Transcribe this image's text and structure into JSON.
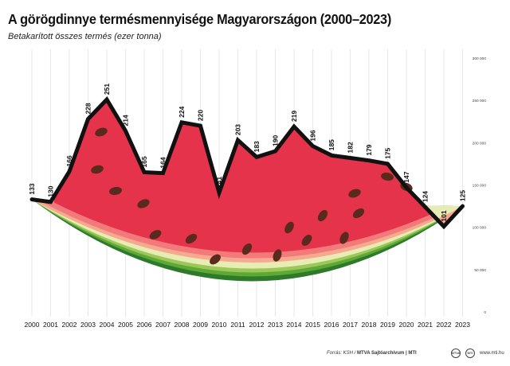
{
  "chart_data": {
    "type": "line",
    "title": "A görögdinnye termésmennyisége Magyarországon (2000–2023)",
    "subtitle": "Betakarított összes termés (ezer tonna)",
    "x": [
      "2000",
      "2001",
      "2002",
      "2003",
      "2004",
      "2005",
      "2006",
      "2007",
      "2008",
      "2009",
      "2010",
      "2011",
      "2012",
      "2013",
      "2014",
      "2015",
      "2016",
      "2017",
      "2018",
      "2019",
      "2020",
      "2021",
      "2022",
      "2023"
    ],
    "series": [
      {
        "values": [
          133,
          130,
          166,
          228,
          251,
          214,
          165,
          164,
          224,
          220,
          141,
          203,
          183,
          190,
          219,
          196,
          185,
          182,
          179,
          175,
          147,
          124,
          101,
          125
        ]
      }
    ],
    "y_ticks": [
      "0",
      "50 000",
      "100 000",
      "150 000",
      "200 000",
      "250 000",
      "300 000"
    ],
    "y_tick_values": [
      0,
      50,
      100,
      150,
      200,
      250,
      300
    ],
    "ylim": [
      0,
      300
    ],
    "y_axis_side": "right",
    "grid": "vertical",
    "colors": {
      "line": "#111111",
      "flesh": "#e5334b",
      "flesh_dark": "#c8223a",
      "inner_pink": "#f27a7a",
      "inner_light": "#f6a98e",
      "rind_pale": "#e6ecb4",
      "rind_light": "#9cc85a",
      "rind_mid": "#5ea838",
      "rind_dark": "#2f7a2a",
      "seed": "#5a2b1c",
      "grid": "#dddddd"
    }
  },
  "footer": {
    "source_label": "Forrás: KSH / ",
    "source_org": "MTVA Sajtóarchívum | MTI",
    "logo1": "MTVA",
    "logo2": "MTI",
    "site": "www.mti.hu"
  }
}
